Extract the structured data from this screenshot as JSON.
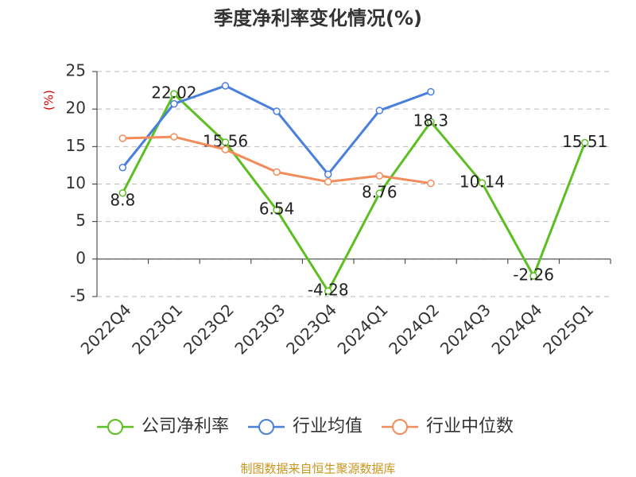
{
  "chart_data": {
    "type": "line",
    "title": "季度净利率变化情况(%)",
    "y_label": "(%)",
    "categories": [
      "2022Q4",
      "2023Q1",
      "2023Q2",
      "2023Q3",
      "2023Q4",
      "2024Q1",
      "2024Q2",
      "2024Q3",
      "2024Q4",
      "2025Q1"
    ],
    "series": [
      {
        "name": "公司净利率",
        "color": "#5bbf21",
        "values": [
          8.8,
          22.02,
          15.56,
          6.54,
          -4.28,
          8.76,
          18.3,
          10.14,
          -2.26,
          15.51
        ],
        "show_labels": true
      },
      {
        "name": "行业均值",
        "color": "#4a7fdc",
        "values": [
          12.2,
          20.7,
          23.1,
          19.7,
          11.3,
          19.8,
          22.3,
          null,
          null,
          null
        ]
      },
      {
        "name": "行业中位数",
        "color": "#f28c5a",
        "values": [
          16.1,
          16.3,
          14.6,
          11.6,
          10.3,
          11.1,
          10.1,
          null,
          null,
          null
        ]
      }
    ],
    "ylim": [
      -5,
      25
    ],
    "yticks": [
      -5,
      0,
      5,
      10,
      15,
      20,
      25
    ],
    "grid": true,
    "source": "制图数据来自恒生聚源数据库"
  }
}
